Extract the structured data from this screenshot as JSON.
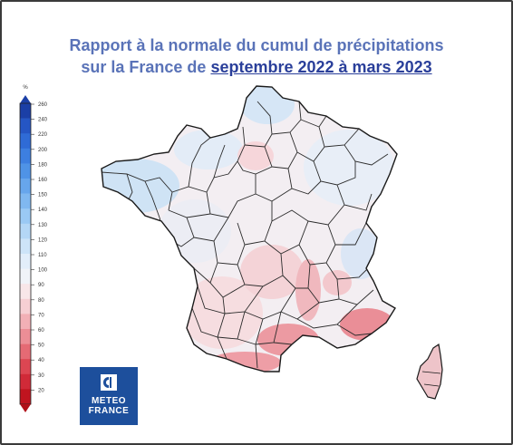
{
  "title": {
    "line1": "Rapport à la normale du cumul de précipitations",
    "line2_prefix": "sur la France de ",
    "line2_highlight": "septembre 2022 à mars 2023"
  },
  "legend": {
    "unit": "%",
    "ticks": [
      "260",
      "240",
      "220",
      "200",
      "180",
      "160",
      "150",
      "140",
      "130",
      "120",
      "110",
      "100",
      "90",
      "80",
      "70",
      "60",
      "50",
      "40",
      "30",
      "20"
    ],
    "colors": [
      "#1b3fa6",
      "#2556c4",
      "#2f6bd6",
      "#3d7fe0",
      "#4f93e6",
      "#67a6ec",
      "#80b8f0",
      "#9ac9f4",
      "#b4d7f6",
      "#cde4f8",
      "#e2eefa",
      "#f0f3f8",
      "#f8e6e8",
      "#f6cfd3",
      "#f2b0b6",
      "#ec8e96",
      "#e56a74",
      "#dc4652",
      "#d02a38",
      "#c0141f"
    ],
    "marker_colors": {
      "top": "#1b3fa6",
      "bottom": "#b01018"
    }
  },
  "regions": [
    {
      "name": "bretagne",
      "color": "#cfe3f5"
    },
    {
      "name": "nord",
      "color": "#d6e6f6"
    },
    {
      "name": "normandie",
      "color": "#e3ecf7"
    },
    {
      "name": "paris",
      "color": "#f6d6da"
    },
    {
      "name": "est",
      "color": "#e8eef7"
    },
    {
      "name": "centre",
      "color": "#f3eef2"
    },
    {
      "name": "ouest",
      "color": "#ecedf4"
    },
    {
      "name": "sud-ouest",
      "color": "#f6dde0"
    },
    {
      "name": "massif",
      "color": "#f4d3d7"
    },
    {
      "name": "alpes",
      "color": "#dbe6f5"
    },
    {
      "name": "rhone",
      "color": "#f0b8be"
    },
    {
      "name": "sud",
      "color": "#ec9aa2"
    },
    {
      "name": "pyrenees",
      "color": "#ee9ea6"
    },
    {
      "name": "provence",
      "color": "#ea8e97"
    },
    {
      "name": "corse",
      "color": "#eec4c9"
    }
  ],
  "logo": {
    "line1": "METEO",
    "line2": "FRANCE"
  }
}
